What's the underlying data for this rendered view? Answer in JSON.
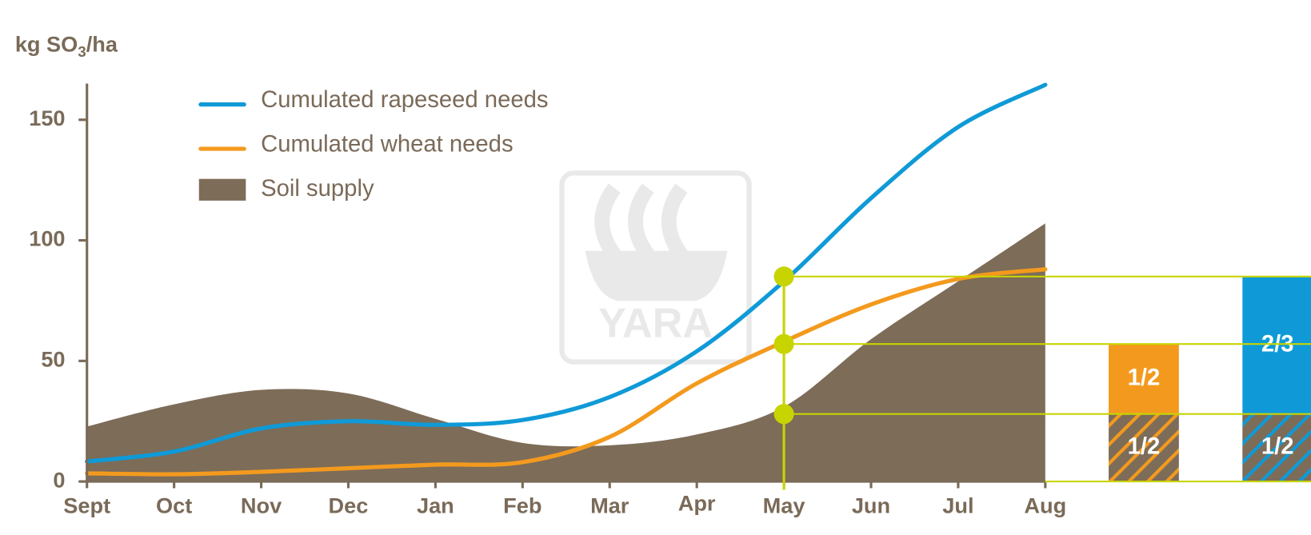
{
  "chart_data": {
    "type": "line",
    "y_label": "kg SO",
    "y_label_sub": "3",
    "y_label_suffix": "/ha",
    "watermark": "YARA",
    "categories": [
      "Sept",
      "Oct",
      "Nov",
      "Dec",
      "Jan",
      "Feb",
      "Mar",
      "Apr",
      "May",
      "Jun",
      "Jul",
      "Aug"
    ],
    "ylim": [
      0,
      165
    ],
    "yticks": [
      0,
      50,
      100,
      150
    ],
    "series": [
      {
        "name": "Cumulated rapeseed needs",
        "color": "#0f9ad7",
        "kind": "line",
        "values": [
          8.3,
          12.4,
          22,
          25,
          23.5,
          25.5,
          35,
          54,
          83,
          117.5,
          147,
          164.5
        ]
      },
      {
        "name": "Cumulated wheat needs",
        "color": "#f39a1e",
        "kind": "line",
        "values": [
          3.4,
          3,
          4,
          5.5,
          7,
          8,
          18.5,
          40.7,
          58,
          73.4,
          84,
          88
        ]
      },
      {
        "name": "Soil supply",
        "color": "#7d6c58",
        "kind": "area",
        "values": [
          22.8,
          32,
          38,
          36.5,
          26,
          16,
          15,
          19.5,
          31,
          59,
          83,
          107
        ]
      }
    ],
    "marker_month": "May",
    "marker_color": "#c8d400",
    "markers": [
      85,
      57,
      28
    ],
    "needs_bars": [
      {
        "color": "#f39a1e",
        "segments": [
          {
            "value": 28,
            "label": "1/2",
            "hatched": true
          },
          {
            "value": 29,
            "label": "1/2",
            "hatched": false
          }
        ]
      },
      {
        "color": "#0f9ad7",
        "segments": [
          {
            "value": 28,
            "label": "1/2",
            "hatched": true
          },
          {
            "value": 57,
            "label": "2/3",
            "hatched": false
          }
        ]
      }
    ]
  }
}
